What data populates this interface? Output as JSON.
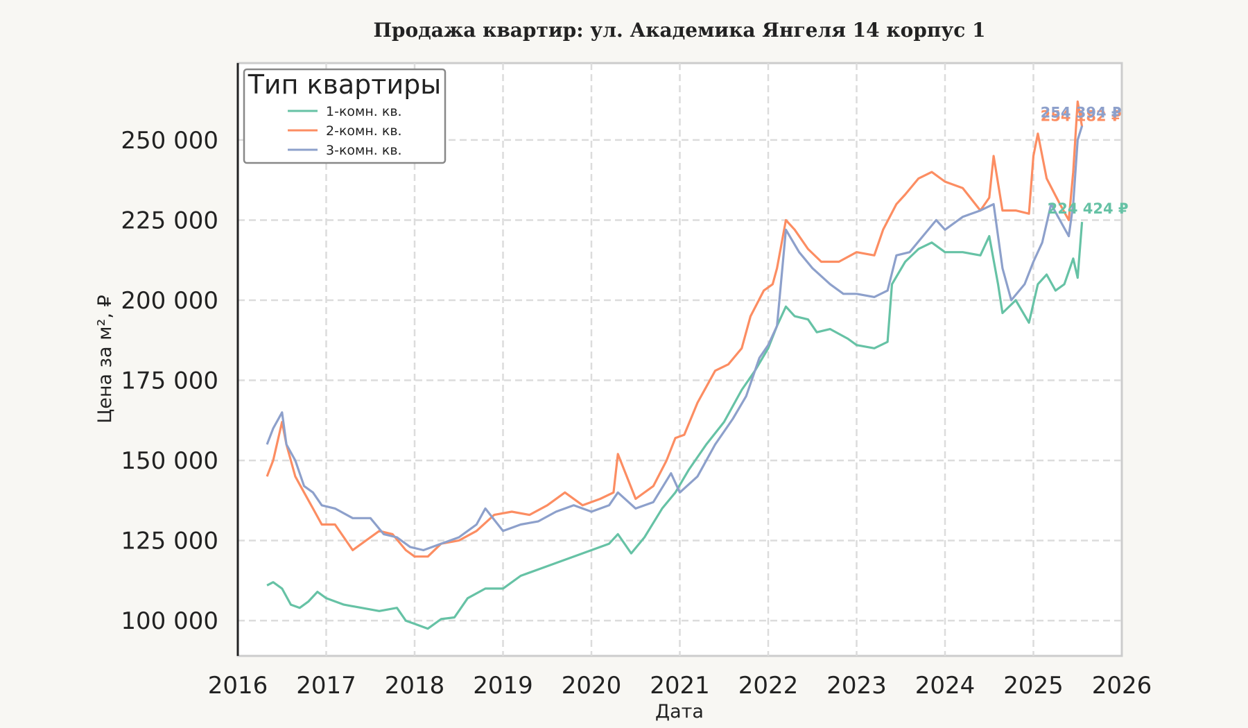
{
  "chart_data": {
    "type": "line",
    "title": "Продажа квартир: ул. Академика Янгеля 14 корпус 1",
    "xlabel": "Дата",
    "ylabel": "Цена за м², ₽",
    "xlim": [
      2016.0,
      2026.0
    ],
    "ylim": [
      89000,
      274000
    ],
    "x_ticks": [
      "2016",
      "2017",
      "2018",
      "2019",
      "2020",
      "2021",
      "2022",
      "2023",
      "2024",
      "2025",
      "2026"
    ],
    "y_ticks": [
      {
        "value": 100000,
        "label": "100 000"
      },
      {
        "value": 125000,
        "label": "125 000"
      },
      {
        "value": 150000,
        "label": "150 000"
      },
      {
        "value": 175000,
        "label": "175 000"
      },
      {
        "value": 200000,
        "label": "200 000"
      },
      {
        "value": 225000,
        "label": "225 000"
      },
      {
        "value": 250000,
        "label": "250 000"
      }
    ],
    "grid": true,
    "legend": {
      "title": "Тип квартиры",
      "placement": "top-left"
    },
    "series": [
      {
        "name": "1-комн. кв.",
        "color": "#66c2a5",
        "end_label": "224 424 ₽",
        "x": [
          2016.33,
          2016.4,
          2016.5,
          2016.6,
          2016.7,
          2016.8,
          2016.9,
          2017.0,
          2017.2,
          2017.4,
          2017.6,
          2017.8,
          2017.9,
          2018.0,
          2018.15,
          2018.3,
          2018.45,
          2018.6,
          2018.8,
          2019.0,
          2019.2,
          2019.4,
          2019.6,
          2019.8,
          2020.0,
          2020.2,
          2020.3,
          2020.45,
          2020.6,
          2020.8,
          2020.95,
          2021.1,
          2021.3,
          2021.5,
          2021.7,
          2021.85,
          2022.0,
          2022.1,
          2022.2,
          2022.3,
          2022.45,
          2022.55,
          2022.7,
          2022.9,
          2023.0,
          2023.2,
          2023.35,
          2023.4,
          2023.55,
          2023.7,
          2023.85,
          2024.0,
          2024.2,
          2024.4,
          2024.5,
          2024.6,
          2024.65,
          2024.8,
          2024.95,
          2025.05,
          2025.15,
          2025.25,
          2025.35,
          2025.45,
          2025.5,
          2025.55
        ],
        "y": [
          111000,
          112000,
          110000,
          105000,
          104000,
          106000,
          109000,
          107000,
          105000,
          104000,
          103000,
          104000,
          100000,
          99000,
          97500,
          100500,
          101000,
          107000,
          110000,
          110000,
          114000,
          116000,
          118000,
          120000,
          122000,
          124000,
          127000,
          121000,
          126000,
          135000,
          140000,
          147000,
          155000,
          162000,
          172000,
          178000,
          185000,
          192000,
          198000,
          195000,
          194000,
          190000,
          191000,
          188000,
          186000,
          185000,
          187000,
          205000,
          212000,
          216000,
          218000,
          215000,
          215000,
          214000,
          220000,
          205000,
          196000,
          200000,
          193000,
          205000,
          208000,
          203000,
          205000,
          213000,
          207000,
          224424
        ]
      },
      {
        "name": "2-комн. кв.",
        "color": "#fc8d62",
        "end_label": "254 182 ₽",
        "x": [
          2016.33,
          2016.4,
          2016.5,
          2016.55,
          2016.65,
          2016.75,
          2016.85,
          2016.95,
          2017.1,
          2017.3,
          2017.45,
          2017.6,
          2017.75,
          2017.9,
          2018.0,
          2018.15,
          2018.3,
          2018.5,
          2018.7,
          2018.9,
          2019.1,
          2019.3,
          2019.5,
          2019.7,
          2019.9,
          2020.1,
          2020.25,
          2020.3,
          2020.5,
          2020.7,
          2020.85,
          2020.95,
          2021.05,
          2021.2,
          2021.4,
          2021.55,
          2021.7,
          2021.8,
          2021.95,
          2022.05,
          2022.1,
          2022.2,
          2022.3,
          2022.45,
          2022.6,
          2022.8,
          2023.0,
          2023.2,
          2023.3,
          2023.45,
          2023.55,
          2023.7,
          2023.85,
          2024.0,
          2024.2,
          2024.4,
          2024.5,
          2024.55,
          2024.65,
          2024.8,
          2024.95,
          2025.0,
          2025.05,
          2025.15,
          2025.3,
          2025.4,
          2025.45,
          2025.5,
          2025.55
        ],
        "y": [
          145000,
          150000,
          162000,
          155000,
          145000,
          140000,
          135000,
          130000,
          130000,
          122000,
          125000,
          128000,
          127000,
          122000,
          120000,
          120000,
          124000,
          125000,
          128000,
          133000,
          134000,
          133000,
          136000,
          140000,
          136000,
          138000,
          140000,
          152000,
          138000,
          142000,
          150000,
          157000,
          158000,
          168000,
          178000,
          180000,
          185000,
          195000,
          203000,
          205000,
          210000,
          225000,
          222000,
          216000,
          212000,
          212000,
          215000,
          214000,
          222000,
          230000,
          233000,
          238000,
          240000,
          237000,
          235000,
          228000,
          232000,
          245000,
          228000,
          228000,
          227000,
          245000,
          252000,
          238000,
          230000,
          225000,
          240000,
          262000,
          254182
        ]
      },
      {
        "name": "3-комн. кв.",
        "color": "#8da0cb",
        "end_label": "254 394 ₽",
        "x": [
          2016.33,
          2016.4,
          2016.5,
          2016.55,
          2016.65,
          2016.75,
          2016.85,
          2016.95,
          2017.1,
          2017.3,
          2017.5,
          2017.65,
          2017.8,
          2017.95,
          2018.1,
          2018.3,
          2018.5,
          2018.7,
          2018.8,
          2019.0,
          2019.2,
          2019.4,
          2019.6,
          2019.8,
          2020.0,
          2020.2,
          2020.3,
          2020.5,
          2020.7,
          2020.9,
          2021.0,
          2021.2,
          2021.4,
          2021.6,
          2021.75,
          2021.9,
          2022.0,
          2022.1,
          2022.2,
          2022.35,
          2022.5,
          2022.7,
          2022.85,
          2023.0,
          2023.2,
          2023.35,
          2023.45,
          2023.6,
          2023.75,
          2023.9,
          2024.0,
          2024.2,
          2024.4,
          2024.55,
          2024.65,
          2024.75,
          2024.9,
          2025.0,
          2025.1,
          2025.2,
          2025.3,
          2025.4,
          2025.45,
          2025.5,
          2025.55
        ],
        "y": [
          155000,
          160000,
          165000,
          155000,
          150000,
          142000,
          140000,
          136000,
          135000,
          132000,
          132000,
          127000,
          126000,
          123000,
          122000,
          124000,
          126000,
          130000,
          135000,
          128000,
          130000,
          131000,
          134000,
          136000,
          134000,
          136000,
          140000,
          135000,
          137000,
          146000,
          140000,
          145000,
          155000,
          163000,
          170000,
          182000,
          186000,
          192000,
          222000,
          215000,
          210000,
          205000,
          202000,
          202000,
          201000,
          203000,
          214000,
          215000,
          220000,
          225000,
          222000,
          226000,
          228000,
          230000,
          210000,
          200000,
          205000,
          212000,
          218000,
          230000,
          225000,
          220000,
          230000,
          250000,
          254394
        ]
      }
    ]
  }
}
